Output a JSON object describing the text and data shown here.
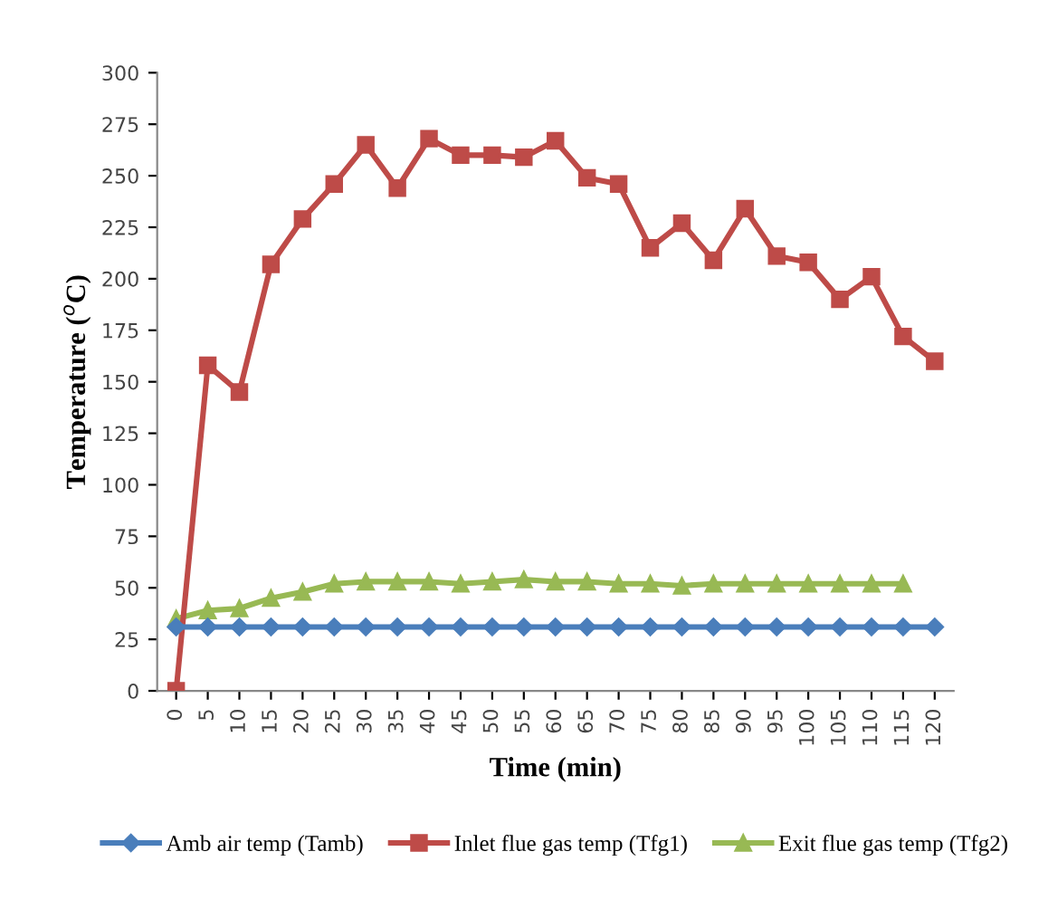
{
  "chart_data": {
    "type": "line",
    "xlabel": "Time (min)",
    "ylabel": "Temperature ($^{o}$C)",
    "categories": [
      "0",
      "5",
      "10",
      "15",
      "20",
      "25",
      "30",
      "35",
      "40",
      "45",
      "50",
      "55",
      "60",
      "65",
      "70",
      "75",
      "80",
      "85",
      "90",
      "95",
      "100",
      "105",
      "110",
      "115",
      "120"
    ],
    "ylim": [
      0,
      300
    ],
    "yticks": [
      0,
      25,
      50,
      75,
      100,
      125,
      150,
      175,
      200,
      225,
      250,
      275,
      300
    ],
    "grid": false,
    "legend": "bottom",
    "series": [
      {
        "name": "Amb air temp (Tamb)",
        "color": "#4a7ebb",
        "marker": "diamond",
        "values": [
          31,
          31,
          31,
          31,
          31,
          31,
          31,
          31,
          31,
          31,
          31,
          31,
          31,
          31,
          31,
          31,
          31,
          31,
          31,
          31,
          31,
          31,
          31,
          31,
          31
        ]
      },
      {
        "name": "Inlet flue gas temp (Tfg1)",
        "color": "#be4b48",
        "marker": "square",
        "values": [
          0,
          158,
          145,
          207,
          229,
          246,
          265,
          244,
          268,
          260,
          260,
          259,
          267,
          249,
          246,
          215,
          227,
          209,
          234,
          211,
          208,
          190,
          201,
          172,
          160
        ]
      },
      {
        "name": "Exit flue gas temp (Tfg2)",
        "color": "#98b954",
        "marker": "triangle",
        "values": [
          35,
          39,
          40,
          45,
          48,
          52,
          53,
          53,
          53,
          52,
          53,
          54,
          53,
          53,
          52,
          52,
          51,
          52,
          52,
          52,
          52,
          52,
          52,
          52,
          null
        ]
      }
    ]
  }
}
